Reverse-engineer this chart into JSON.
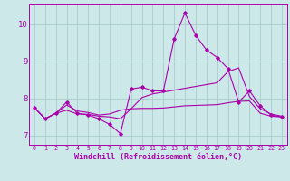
{
  "xlabel": "Windchill (Refroidissement éolien,°C)",
  "bg_color": "#cce8e8",
  "line_color": "#aa00aa",
  "grid_color": "#aacccc",
  "xlim": [
    -0.5,
    23.5
  ],
  "ylim": [
    6.75,
    10.55
  ],
  "yticks": [
    7,
    8,
    9,
    10
  ],
  "xticks": [
    0,
    1,
    2,
    3,
    4,
    5,
    6,
    7,
    8,
    9,
    10,
    11,
    12,
    13,
    14,
    15,
    16,
    17,
    18,
    19,
    20,
    21,
    22,
    23
  ],
  "series0": [
    7.75,
    7.45,
    7.6,
    7.9,
    7.6,
    7.55,
    7.45,
    7.3,
    7.05,
    8.25,
    8.3,
    8.2,
    8.2,
    9.6,
    10.3,
    9.7,
    9.3,
    9.1,
    8.8,
    7.9,
    8.2,
    7.8,
    7.55,
    7.5
  ],
  "series1": [
    7.75,
    7.45,
    7.6,
    7.82,
    7.66,
    7.62,
    7.55,
    7.58,
    7.68,
    7.72,
    7.73,
    7.73,
    7.74,
    7.77,
    7.8,
    7.81,
    7.82,
    7.83,
    7.88,
    7.92,
    7.93,
    7.6,
    7.52,
    7.5
  ],
  "series2": [
    7.75,
    7.45,
    7.6,
    7.68,
    7.58,
    7.57,
    7.52,
    7.5,
    7.45,
    7.72,
    8.02,
    8.12,
    8.17,
    8.22,
    8.27,
    8.32,
    8.37,
    8.42,
    8.72,
    8.82,
    8.05,
    7.72,
    7.58,
    7.52
  ]
}
